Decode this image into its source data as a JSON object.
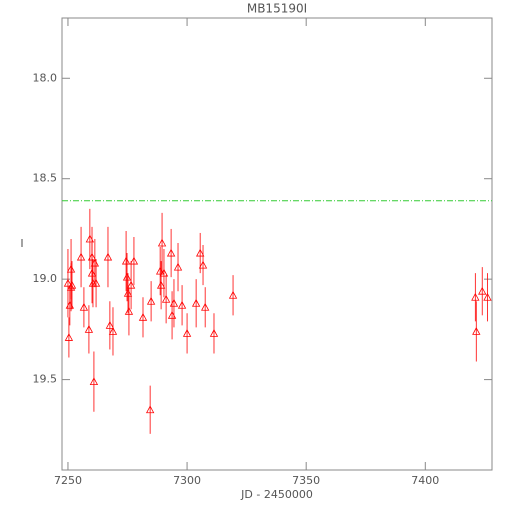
{
  "chart_data": {
    "type": "scatter",
    "title": "MB15190I",
    "x_label": "JD - 2450000",
    "y_label": "I",
    "xlim": [
      7247.5,
      7428
    ],
    "ylim": [
      17.7,
      19.95
    ],
    "y_inverted": true,
    "xticks": [
      7250,
      7300,
      7350,
      7400
    ],
    "yticks": [
      {
        "value": 18,
        "label": "18.0"
      },
      18.5,
      {
        "value": 19,
        "label": "19.0"
      },
      19.5
    ],
    "reference_line": 18.61,
    "reference_color": "#33cc33",
    "color": "#ff0000",
    "axis_color": "#888888",
    "x": [
      7250.0,
      7250.4,
      7250.8,
      7251.3,
      7251.3,
      7251.7,
      7255.5,
      7256.7,
      7258.8,
      7259.2,
      7260.1,
      7260.1,
      7260.5,
      7260.9,
      7261.3,
      7261.8,
      7266.8,
      7267.6,
      7268.9,
      7274.4,
      7274.8,
      7275.2,
      7275.6,
      7276.5,
      7277.7,
      7281.5,
      7284.5,
      7284.9,
      7288.7,
      7289.1,
      7289.5,
      7290.3,
      7291.2,
      7293.3,
      7293.7,
      7294.5,
      7296.2,
      7297.9,
      7300.0,
      7303.8,
      7305.5,
      7306.7,
      7307.6,
      7311.3,
      7319.3,
      7421.0,
      7421.4,
      7423.9,
      7426.1
    ],
    "values": [
      19.02,
      19.29,
      19.13,
      19.04,
      18.95,
      19.03,
      18.89,
      19.14,
      19.25,
      18.8,
      18.97,
      18.89,
      19.02,
      19.51,
      18.92,
      19.02,
      18.89,
      19.23,
      19.26,
      18.91,
      18.99,
      19.07,
      19.16,
      19.03,
      18.91,
      19.19,
      19.65,
      19.11,
      18.96,
      19.03,
      18.82,
      18.97,
      19.1,
      18.87,
      19.18,
      19.12,
      18.94,
      19.13,
      19.27,
      19.12,
      18.87,
      18.93,
      19.14,
      19.27,
      19.08,
      19.09,
      19.26,
      19.06,
      19.09
    ],
    "errors": [
      0.17,
      0.1,
      0.1,
      0.12,
      0.15,
      0.12,
      0.15,
      0.1,
      0.12,
      0.15,
      0.15,
      0.15,
      0.12,
      0.15,
      0.12,
      0.12,
      0.15,
      0.12,
      0.12,
      0.15,
      0.12,
      0.1,
      0.12,
      0.12,
      0.12,
      0.1,
      0.12,
      0.1,
      0.12,
      0.12,
      0.15,
      0.12,
      0.12,
      0.12,
      0.12,
      0.12,
      0.12,
      0.1,
      0.1,
      0.12,
      0.1,
      0.1,
      0.1,
      0.1,
      0.1,
      0.12,
      0.15,
      0.12,
      0.12
    ]
  }
}
